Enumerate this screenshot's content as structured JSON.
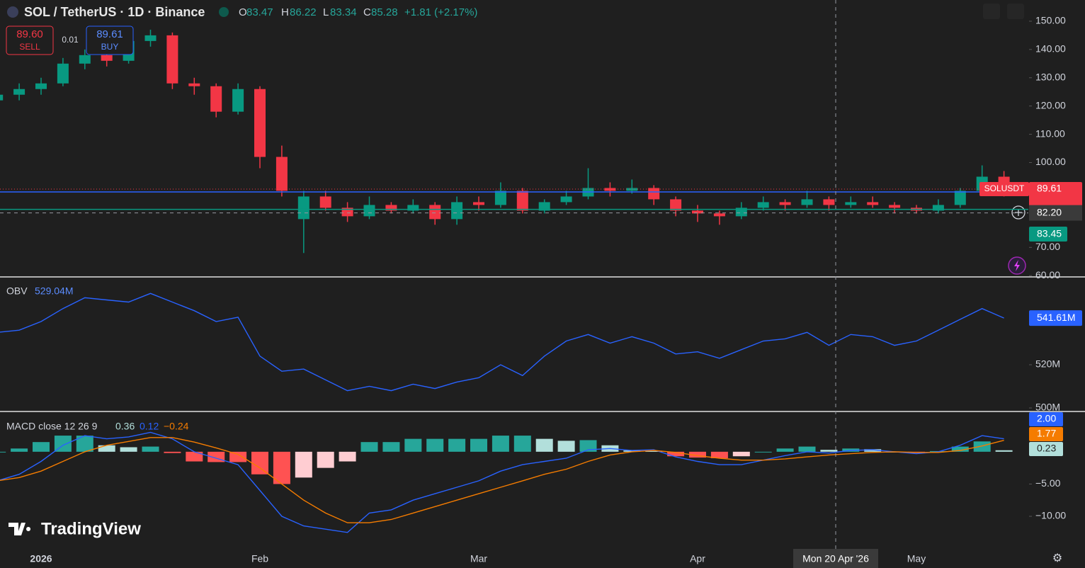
{
  "header": {
    "symbol": "SOL / TetherUS · 1D · Binance",
    "ohlc": [
      {
        "key": "O",
        "value": "83.47"
      },
      {
        "key": "H",
        "value": "86.22"
      },
      {
        "key": "L",
        "value": "83.34"
      },
      {
        "key": "C",
        "value": "85.28"
      }
    ],
    "change": "+1.81 (+2.17%)"
  },
  "trade": {
    "sell": {
      "price": "89.60",
      "label": "SELL"
    },
    "spread": "0.01",
    "buy": {
      "price": "89.61",
      "label": "BUY"
    }
  },
  "crosshair": {
    "date": "Mon 20 Apr '26",
    "price": {
      "value": 82.2,
      "label": "82.20"
    }
  },
  "brand": "TradingView",
  "chart_data": [
    {
      "type": "candlestick",
      "categories": [
        null,
        null,
        "2026",
        null,
        null,
        null,
        null,
        null,
        null,
        null,
        null,
        null,
        "Feb",
        null,
        null,
        null,
        null,
        null,
        null,
        null,
        null,
        null,
        "Mar",
        null,
        null,
        null,
        null,
        null,
        null,
        null,
        null,
        null,
        "Apr",
        null,
        null,
        null,
        null,
        null,
        null,
        null,
        null,
        null,
        "May",
        null,
        null,
        null,
        null
      ],
      "open": [
        122,
        124,
        126,
        128,
        135,
        138,
        136,
        143,
        145,
        128,
        127,
        118,
        126,
        102,
        80,
        88,
        84,
        81,
        85,
        83,
        85,
        80,
        86,
        85,
        90,
        83,
        86,
        88,
        91,
        90,
        91,
        87,
        83,
        82,
        81,
        84,
        86,
        85,
        87,
        85,
        86,
        85,
        84,
        83,
        85,
        90,
        95
      ],
      "high": [
        126,
        128,
        130,
        137,
        140,
        139,
        145,
        147,
        146,
        130,
        128,
        128,
        127,
        106,
        90,
        90,
        86,
        88,
        86,
        87,
        86,
        88,
        88,
        93,
        91,
        87,
        90,
        98,
        93,
        94,
        92,
        88,
        85,
        83,
        86,
        88,
        87,
        90,
        88,
        88,
        88,
        86,
        85,
        87,
        91,
        99,
        97
      ],
      "low": [
        121,
        122,
        124,
        127,
        133,
        134,
        135,
        141,
        126,
        124,
        116,
        117,
        98,
        88,
        68,
        83,
        79,
        80,
        82,
        82,
        78,
        78,
        83,
        84,
        82,
        82,
        85,
        87,
        88,
        89,
        85,
        81,
        79,
        78,
        80,
        83,
        83,
        84,
        83,
        84,
        84,
        82,
        82,
        82,
        84,
        89,
        88
      ],
      "close": [
        124,
        126,
        128,
        135,
        138,
        136,
        143,
        145,
        128,
        127,
        118,
        126,
        102,
        90,
        88,
        84,
        81,
        85,
        83,
        85,
        80,
        86,
        85,
        90,
        83,
        86,
        88,
        91,
        90,
        91,
        87,
        83,
        82,
        81,
        84,
        86,
        85,
        87,
        85,
        86,
        85,
        84,
        83,
        85,
        90,
        95,
        89.61
      ],
      "up_color": "#089981",
      "down_color": "#f23645",
      "ylim": [
        59.8,
        157.5
      ],
      "yticks": [
        {
          "value": 150,
          "label": "150.00"
        },
        {
          "value": 140,
          "label": "140.00"
        },
        {
          "value": 130,
          "label": "130.00"
        },
        {
          "value": 120,
          "label": "120.00"
        },
        {
          "value": 110,
          "label": "110.00"
        },
        {
          "value": 100,
          "label": "100.00"
        },
        {
          "value": 70,
          "label": "70.00"
        },
        {
          "value": 60,
          "label": "60.00"
        }
      ],
      "last_price": {
        "value": 89.61,
        "label": "89.61",
        "symbol": "SOLUSDT",
        "color": "#f23645"
      },
      "lines": [
        {
          "value": 89.61,
          "color": "#2962ff"
        },
        {
          "value": 83.45,
          "label": "83.45",
          "color": "#089981"
        }
      ]
    },
    {
      "type": "line",
      "title": "OBV",
      "series": [
        {
          "name": "OBV",
          "color": "#2962ff",
          "values": [
            535,
            536,
            540,
            546,
            551,
            550,
            549,
            553,
            549,
            545,
            540,
            542,
            524,
            517,
            518,
            513,
            508,
            510,
            508,
            511,
            509,
            512,
            514,
            520,
            515,
            524,
            531,
            534,
            530,
            533,
            530,
            525,
            526,
            523,
            527,
            531,
            532,
            535,
            529,
            534,
            533,
            529,
            531,
            536,
            541,
            546,
            541.61
          ]
        }
      ],
      "legend_value": "529.04M",
      "last_label": "541.61M",
      "ylim": [
        498.7,
        557.7
      ],
      "yticks": [
        {
          "value": 520,
          "label": "520M"
        },
        {
          "value": 500,
          "label": "500M"
        }
      ]
    },
    {
      "type": "macd",
      "title": "MACD close 12 26 9",
      "series": [
        {
          "color": "#26a69a",
          "legend_value": "0.36",
          "last_label": "0.23",
          "values": [
            0,
            0.5,
            1.5,
            2.5,
            2.5,
            1,
            0.7,
            0.8,
            -0.2,
            -1.5,
            -1.6,
            -1.6,
            -3.5,
            -5,
            -4,
            -2.5,
            -1.5,
            1.5,
            1.5,
            2,
            2,
            2,
            2,
            2.5,
            2.5,
            2,
            1.7,
            1.8,
            1,
            0.2,
            0.1,
            -0.7,
            -0.9,
            -1,
            -0.7,
            0,
            0.5,
            0.8,
            0.3,
            0.5,
            0.4,
            0,
            -0.2,
            0.1,
            0.8,
            1.6,
            0.23
          ]
        },
        {
          "color": "#2962ff",
          "legend_value": "0.12",
          "last_label": "2.00",
          "values": [
            -4.5,
            -3.5,
            -1.5,
            1,
            2.5,
            2,
            2.3,
            3,
            2,
            0,
            -1,
            -2,
            -6,
            -10,
            -11.5,
            -12,
            -12.5,
            -9.5,
            -9,
            -7.5,
            -6.5,
            -5.5,
            -4.5,
            -3,
            -2,
            -1.5,
            -1,
            0.3,
            0.5,
            0.2,
            0.3,
            -0.8,
            -1.5,
            -2,
            -2,
            -1.3,
            -0.6,
            0,
            -0.2,
            0.2,
            0.3,
            0,
            -0.3,
            0,
            1,
            2.5,
            2
          ]
        },
        {
          "color": "#f57c00",
          "legend_value": "−0.24",
          "last_label": "1.77",
          "values": [
            -4.5,
            -4,
            -3,
            -1.5,
            0,
            1,
            1.6,
            2.2,
            2.2,
            1.5,
            0.6,
            -0.4,
            -2.5,
            -5,
            -7.5,
            -9.5,
            -11,
            -11,
            -10.5,
            -9.5,
            -8.5,
            -7.5,
            -6.5,
            -5.5,
            -4.5,
            -3.5,
            -2.7,
            -1.5,
            -0.5,
            0,
            0.2,
            -0.1,
            -0.6,
            -1,
            -1.3,
            -1.3,
            -1.1,
            -0.8,
            -0.5,
            -0.3,
            -0.1,
            0,
            -0.1,
            -0.1,
            0.2,
            0.9,
            1.77
          ]
        }
      ],
      "hist_colors": {
        "up_grow": "#26a69a",
        "up_fall": "#b2dfdb",
        "down_grow": "#ff5252",
        "down_fall": "#ffcdd2"
      },
      "ylim": [
        -15.05,
        5.8
      ],
      "yticks": [
        {
          "value": -5,
          "label": "−5.00"
        },
        {
          "value": -10,
          "label": "−10.00"
        }
      ]
    }
  ]
}
